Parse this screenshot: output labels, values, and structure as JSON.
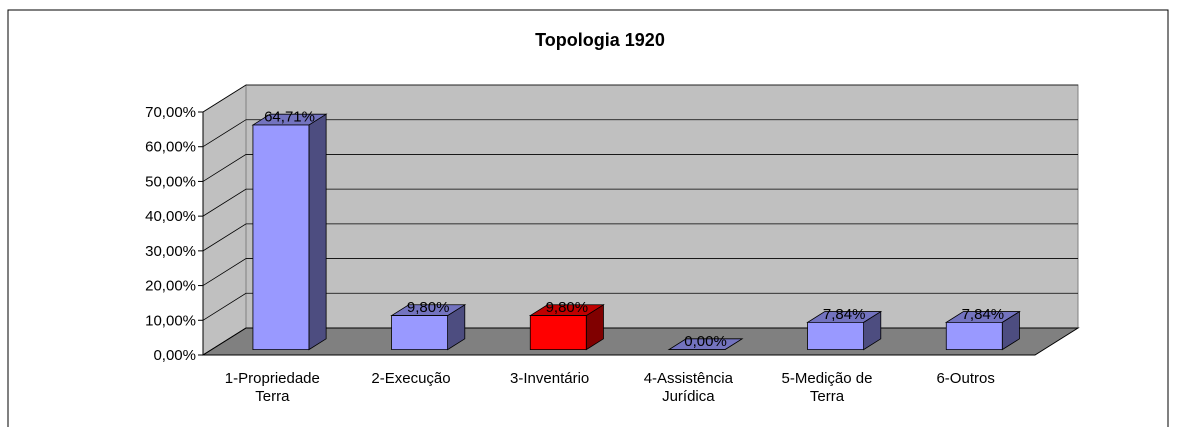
{
  "chart_data": {
    "type": "bar3d",
    "title": "Topologia 1920",
    "categories": [
      "1-Propriedade Terra",
      "2-Execução",
      "3-Inventário",
      "4-Assistência Jurídica",
      "5-Medição de Terra",
      "6-Outros"
    ],
    "values": [
      64.71,
      9.8,
      9.8,
      0,
      7.84,
      7.84
    ],
    "value_labels": [
      "64,71%",
      "9,80%",
      "9,80%",
      "0,00%",
      "7,84%",
      "7,84%"
    ],
    "colors": [
      "#9999ff",
      "#9999ff",
      "#ff0000",
      "#9999ff",
      "#9999ff",
      "#9999ff"
    ],
    "ylim": [
      0,
      70
    ],
    "yticks": [
      {
        "value": 0,
        "label": "0,00%"
      },
      {
        "value": 10,
        "label": "10,00%"
      },
      {
        "value": 20,
        "label": "20,00%"
      },
      {
        "value": 30,
        "label": "30,00%"
      },
      {
        "value": 40,
        "label": "40,00%"
      },
      {
        "value": 50,
        "label": "50,00%"
      },
      {
        "value": 60,
        "label": "60,00%"
      },
      {
        "value": 70,
        "label": "70,00%"
      }
    ],
    "grid": true
  }
}
